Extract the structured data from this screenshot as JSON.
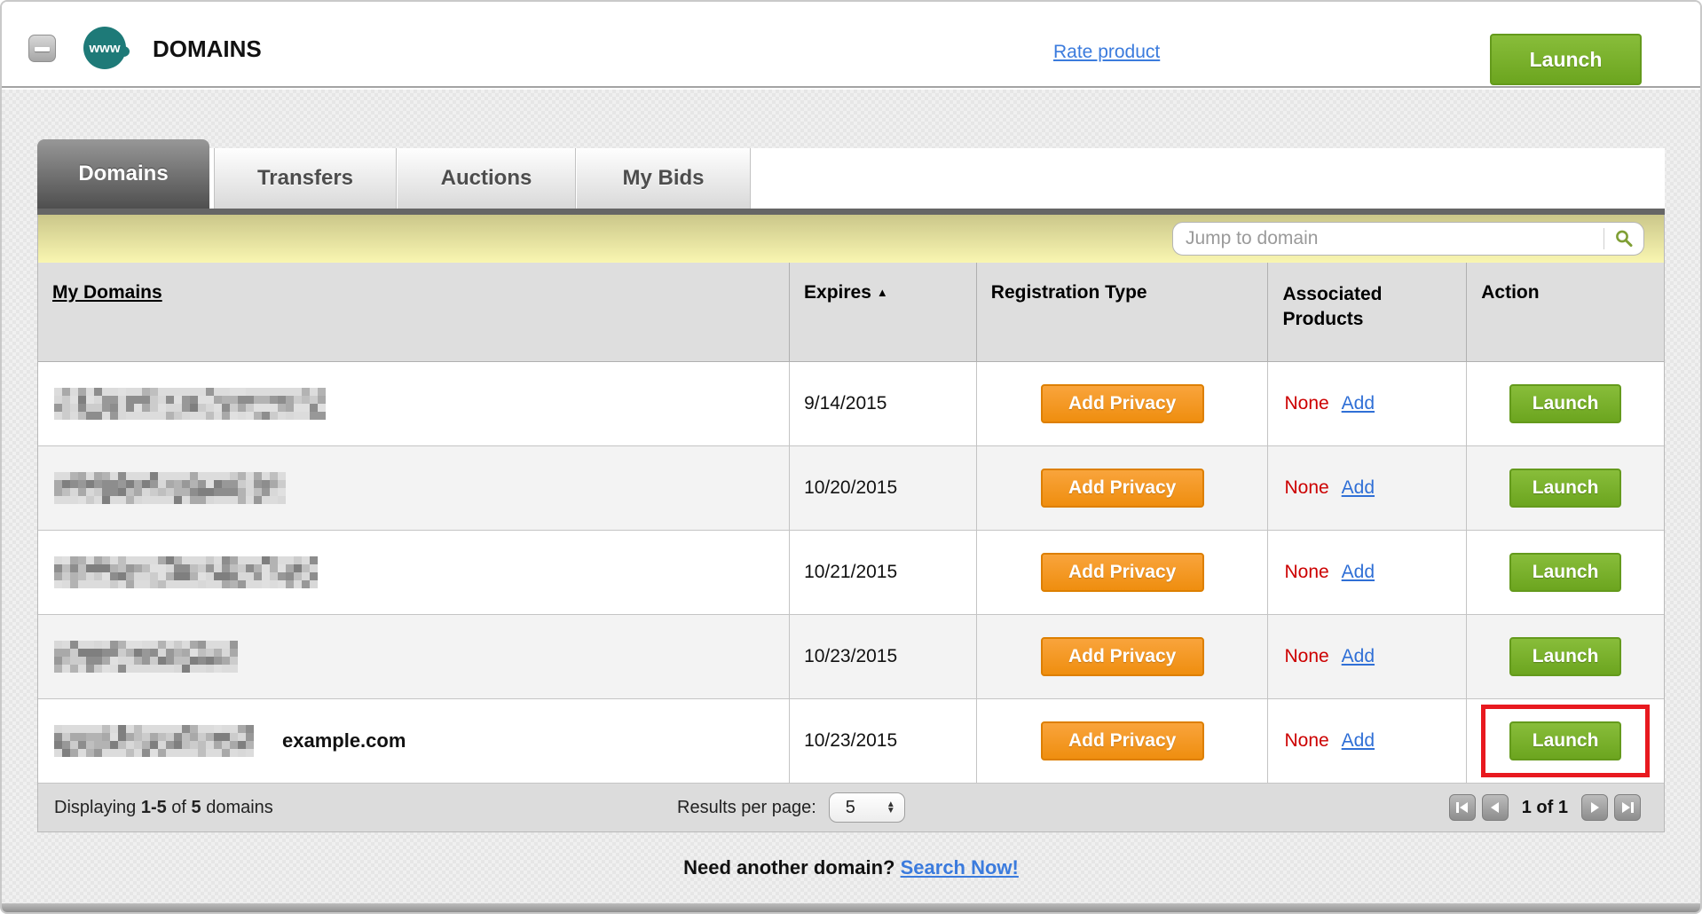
{
  "header": {
    "title": "DOMAINS",
    "rate_link": "Rate product",
    "launch_button": "Launch",
    "logo_text": "www"
  },
  "tabs": [
    {
      "label": "Domains",
      "active": true
    },
    {
      "label": "Transfers",
      "active": false
    },
    {
      "label": "Auctions",
      "active": false
    },
    {
      "label": "My Bids",
      "active": false
    }
  ],
  "search": {
    "placeholder": "Jump to domain",
    "value": ""
  },
  "table": {
    "columns": {
      "domains": "My Domains",
      "expires": "Expires",
      "registration_type": "Registration Type",
      "associated_products": "Associated Products",
      "action": "Action"
    },
    "sort": {
      "column": "Expires",
      "direction": "asc",
      "arrow": "▲"
    },
    "rows": [
      {
        "domain_redacted": true,
        "annotation": "",
        "expires": "9/14/2015",
        "privacy_button": "Add Privacy",
        "associated_none": "None",
        "associated_add_link": "Add",
        "launch_button": "Launch",
        "highlighted": false
      },
      {
        "domain_redacted": true,
        "annotation": "",
        "expires": "10/20/2015",
        "privacy_button": "Add Privacy",
        "associated_none": "None",
        "associated_add_link": "Add",
        "launch_button": "Launch",
        "highlighted": false
      },
      {
        "domain_redacted": true,
        "annotation": "",
        "expires": "10/21/2015",
        "privacy_button": "Add Privacy",
        "associated_none": "None",
        "associated_add_link": "Add",
        "launch_button": "Launch",
        "highlighted": false
      },
      {
        "domain_redacted": true,
        "annotation": "",
        "expires": "10/23/2015",
        "privacy_button": "Add Privacy",
        "associated_none": "None",
        "associated_add_link": "Add",
        "launch_button": "Launch",
        "highlighted": false
      },
      {
        "domain_redacted": true,
        "annotation": "example.com",
        "expires": "10/23/2015",
        "privacy_button": "Add Privacy",
        "associated_none": "None",
        "associated_add_link": "Add",
        "launch_button": "Launch",
        "highlighted": true
      }
    ]
  },
  "footer": {
    "displaying_prefix": "Displaying ",
    "range": "1-5",
    "of_word": " of ",
    "total": "5",
    "suffix": " domains",
    "results_per_page_label": "Results per page:",
    "results_per_page_value": "5",
    "page_status": "1 of 1"
  },
  "bottom": {
    "prompt": "Need another domain? ",
    "link": "Search Now!"
  },
  "colors": {
    "accent_green": "#6ca51f",
    "accent_orange": "#ef8e0f",
    "highlight_red": "#e8191f",
    "bar_yellow": "#f9f6b1",
    "link_blue": "#3b7bdd",
    "none_red": "#cc0000",
    "logo_teal": "#1e7a78"
  }
}
